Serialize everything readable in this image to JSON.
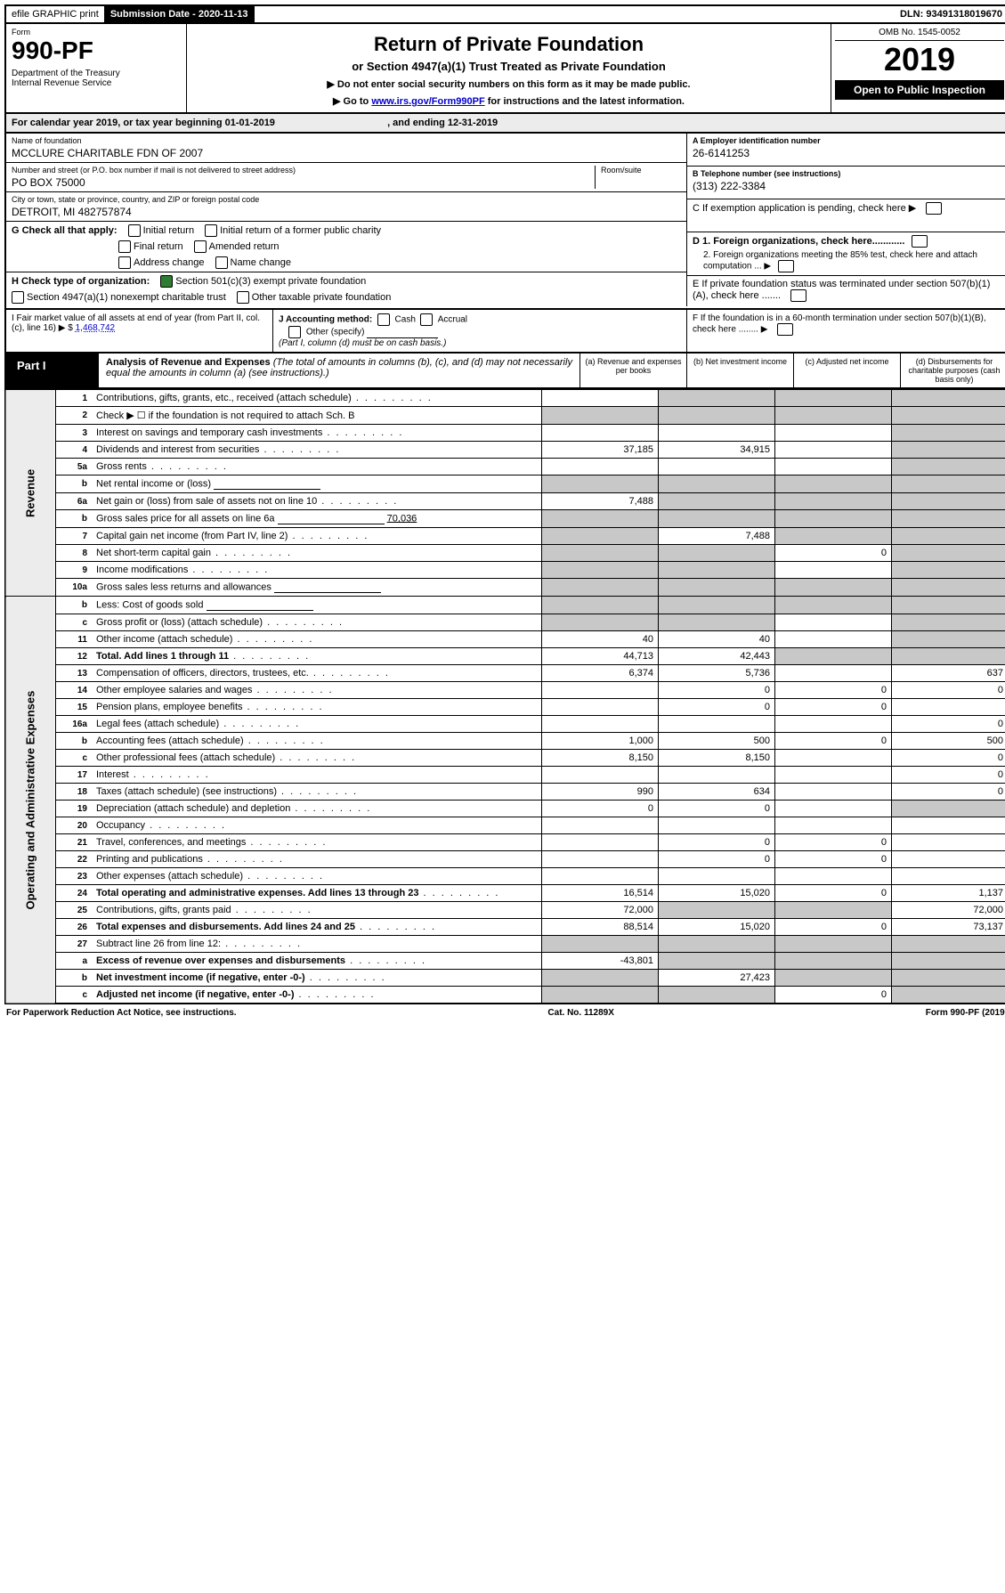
{
  "header": {
    "efile_label": "efile GRAPHIC print",
    "submission_label": "Submission Date - 2020-11-13",
    "dln": "DLN: 93491318019670"
  },
  "title_block": {
    "form_word": "Form",
    "form_no": "990-PF",
    "dept": "Department of the Treasury\nInternal Revenue Service",
    "title": "Return of Private Foundation",
    "subtitle": "or Section 4947(a)(1) Trust Treated as Private Foundation",
    "note1": "▶ Do not enter social security numbers on this form as it may be made public.",
    "note2_prefix": "▶ Go to ",
    "note2_link": "www.irs.gov/Form990PF",
    "note2_suffix": " for instructions and the latest information.",
    "omb": "OMB No. 1545-0052",
    "year": "2019",
    "open": "Open to Public Inspection"
  },
  "cal_year": {
    "prefix": "For calendar year 2019, or tax year beginning ",
    "begin": "01-01-2019",
    "mid": " , and ending ",
    "end": "12-31-2019"
  },
  "info": {
    "name_label": "Name of foundation",
    "name": "MCCLURE CHARITABLE FDN OF 2007",
    "addr_label": "Number and street (or P.O. box number if mail is not delivered to street address)",
    "room_label": "Room/suite",
    "addr": "PO BOX 75000",
    "city_label": "City or town, state or province, country, and ZIP or foreign postal code",
    "city": "DETROIT, MI  482757874",
    "ein_label": "A Employer identification number",
    "ein": "26-6141253",
    "tel_label": "B Telephone number (see instructions)",
    "tel": "(313) 222-3384",
    "c_label": "C If exemption application is pending, check here ▶",
    "g_label": "G Check all that apply:",
    "g_opts": [
      "Initial return",
      "Initial return of a former public charity",
      "Final return",
      "Amended return",
      "Address change",
      "Name change"
    ],
    "h_label": "H Check type of organization:",
    "h_opt1": "Section 501(c)(3) exempt private foundation",
    "h_opt2": "Section 4947(a)(1) nonexempt charitable trust",
    "h_opt3": "Other taxable private foundation",
    "d1": "D 1. Foreign organizations, check here............",
    "d2": "2. Foreign organizations meeting the 85% test, check here and attach computation ... ▶",
    "e_label": "E  If private foundation status was terminated under section 507(b)(1)(A), check here .......",
    "i_label": "I Fair market value of all assets at end of year (from Part II, col. (c), line 16) ▶ $",
    "i_value": "1,468,742",
    "j_label": "J Accounting method:",
    "j_cash": "Cash",
    "j_accrual": "Accrual",
    "j_other": "Other (specify)",
    "j_note": "(Part I, column (d) must be on cash basis.)",
    "f_label": "F  If the foundation is in a 60-month termination under section 507(b)(1)(B), check here ........ ▶"
  },
  "part1": {
    "label": "Part I",
    "title": "Analysis of Revenue and Expenses",
    "desc": "(The total of amounts in columns (b), (c), and (d) may not necessarily equal the amounts in column (a) (see instructions).)",
    "col_a": "(a)   Revenue and expenses per books",
    "col_b": "(b)   Net investment income",
    "col_c": "(c)   Adjusted net income",
    "col_d": "(d)   Disbursements for charitable purposes (cash basis only)"
  },
  "sections": {
    "revenue": "Revenue",
    "expenses": "Operating and Administrative Expenses"
  },
  "rows": [
    {
      "n": "1",
      "d": "Contributions, gifts, grants, etc., received (attach schedule)",
      "a": "",
      "b": "",
      "bs": true,
      "c": "",
      "cs": true,
      "ds": true
    },
    {
      "n": "2",
      "d": "Check ▶ ☐ if the foundation is not required to attach Sch. B",
      "nodots": true,
      "a": "",
      "as": true,
      "b": "",
      "bs": true,
      "c": "",
      "cs": true,
      "ds": true
    },
    {
      "n": "3",
      "d": "Interest on savings and temporary cash investments",
      "a": "",
      "b": "",
      "c": "",
      "ds": true
    },
    {
      "n": "4",
      "d": "Dividends and interest from securities",
      "a": "37,185",
      "b": "34,915",
      "c": "",
      "ds": true
    },
    {
      "n": "5a",
      "d": "Gross rents",
      "a": "",
      "b": "",
      "c": "",
      "ds": true
    },
    {
      "n": "b",
      "d": "Net rental income or (loss)",
      "inline": true,
      "as": true,
      "bs": true,
      "cs": true,
      "ds": true
    },
    {
      "n": "6a",
      "d": "Net gain or (loss) from sale of assets not on line 10",
      "a": "7,488",
      "bs": true,
      "cs": true,
      "ds": true
    },
    {
      "n": "b",
      "d": "Gross sales price for all assets on line 6a",
      "inline": true,
      "inlineval": "70,036",
      "as": true,
      "bs": true,
      "cs": true,
      "ds": true
    },
    {
      "n": "7",
      "d": "Capital gain net income (from Part IV, line 2)",
      "as": true,
      "b": "7,488",
      "cs": true,
      "ds": true
    },
    {
      "n": "8",
      "d": "Net short-term capital gain",
      "as": true,
      "bs": true,
      "c": "0",
      "ds": true
    },
    {
      "n": "9",
      "d": "Income modifications",
      "as": true,
      "bs": true,
      "c": "",
      "ds": true
    },
    {
      "n": "10a",
      "d": "Gross sales less returns and allowances",
      "inline": true,
      "as": true,
      "bs": true,
      "cs": true,
      "ds": true
    },
    {
      "n": "b",
      "d": "Less: Cost of goods sold",
      "inline": true,
      "as": true,
      "bs": true,
      "cs": true,
      "ds": true
    },
    {
      "n": "c",
      "d": "Gross profit or (loss) (attach schedule)",
      "as": true,
      "bs": true,
      "c": "",
      "ds": true
    },
    {
      "n": "11",
      "d": "Other income (attach schedule)",
      "a": "40",
      "b": "40",
      "c": "",
      "ds": true
    },
    {
      "n": "12",
      "d": "Total. Add lines 1 through 11",
      "bold": true,
      "a": "44,713",
      "b": "42,443",
      "cs": true,
      "ds": true
    },
    {
      "n": "13",
      "d": "Compensation of officers, directors, trustees, etc.",
      "a": "6,374",
      "b": "5,736",
      "c": "",
      "dd": "637"
    },
    {
      "n": "14",
      "d": "Other employee salaries and wages",
      "a": "",
      "b": "0",
      "c": "0",
      "dd": "0"
    },
    {
      "n": "15",
      "d": "Pension plans, employee benefits",
      "a": "",
      "b": "0",
      "c": "0",
      "dd": ""
    },
    {
      "n": "16a",
      "d": "Legal fees (attach schedule)",
      "a": "",
      "b": "",
      "c": "",
      "dd": "0"
    },
    {
      "n": "b",
      "d": "Accounting fees (attach schedule)",
      "a": "1,000",
      "b": "500",
      "c": "0",
      "dd": "500"
    },
    {
      "n": "c",
      "d": "Other professional fees (attach schedule)",
      "a": "8,150",
      "b": "8,150",
      "c": "",
      "dd": "0"
    },
    {
      "n": "17",
      "d": "Interest",
      "a": "",
      "b": "",
      "c": "",
      "dd": "0"
    },
    {
      "n": "18",
      "d": "Taxes (attach schedule) (see instructions)",
      "a": "990",
      "b": "634",
      "c": "",
      "dd": "0"
    },
    {
      "n": "19",
      "d": "Depreciation (attach schedule) and depletion",
      "a": "0",
      "b": "0",
      "c": "",
      "ds": true
    },
    {
      "n": "20",
      "d": "Occupancy",
      "a": "",
      "b": "",
      "c": "",
      "dd": ""
    },
    {
      "n": "21",
      "d": "Travel, conferences, and meetings",
      "a": "",
      "b": "0",
      "c": "0",
      "dd": ""
    },
    {
      "n": "22",
      "d": "Printing and publications",
      "a": "",
      "b": "0",
      "c": "0",
      "dd": ""
    },
    {
      "n": "23",
      "d": "Other expenses (attach schedule)",
      "a": "",
      "b": "",
      "c": "",
      "dd": ""
    },
    {
      "n": "24",
      "d": "Total operating and administrative expenses. Add lines 13 through 23",
      "bold": true,
      "a": "16,514",
      "b": "15,020",
      "c": "0",
      "dd": "1,137"
    },
    {
      "n": "25",
      "d": "Contributions, gifts, grants paid",
      "a": "72,000",
      "bs": true,
      "cs": true,
      "dd": "72,000"
    },
    {
      "n": "26",
      "d": "Total expenses and disbursements. Add lines 24 and 25",
      "bold": true,
      "a": "88,514",
      "b": "15,020",
      "c": "0",
      "dd": "73,137"
    },
    {
      "n": "27",
      "d": "Subtract line 26 from line 12:",
      "a": "",
      "as": true,
      "bs": true,
      "cs": true,
      "ds": true
    },
    {
      "n": "a",
      "d": "Excess of revenue over expenses and disbursements",
      "bold": true,
      "a": "-43,801",
      "bs": true,
      "cs": true,
      "ds": true
    },
    {
      "n": "b",
      "d": "Net investment income (if negative, enter -0-)",
      "bold": true,
      "as": true,
      "b": "27,423",
      "cs": true,
      "ds": true
    },
    {
      "n": "c",
      "d": "Adjusted net income (if negative, enter -0-)",
      "bold": true,
      "as": true,
      "bs": true,
      "c": "0",
      "ds": true
    }
  ],
  "footer": {
    "left": "For Paperwork Reduction Act Notice, see instructions.",
    "mid": "Cat. No. 11289X",
    "right": "Form 990-PF (2019)"
  }
}
